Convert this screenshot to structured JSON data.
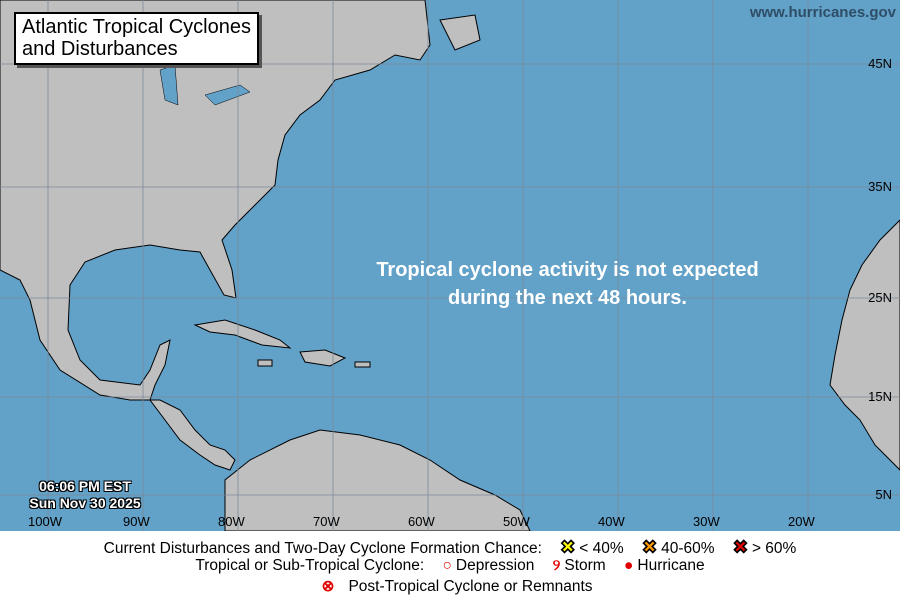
{
  "title_line1": "Atlantic Tropical Cyclones",
  "title_line2": "and Disturbances",
  "site": "www.hurricanes.gov",
  "message_line1": "Tropical cyclone activity is not expected",
  "message_line2": "during the next 48 hours.",
  "time": "06:06 PM EST",
  "date": "Sun Nov 30 2025",
  "longitudes": [
    "100W",
    "90W",
    "80W",
    "70W",
    "60W",
    "50W",
    "40W",
    "30W",
    "20W"
  ],
  "latitudes": [
    "45N",
    "35N",
    "25N",
    "15N",
    "5N"
  ],
  "colors": {
    "ocean": "#62a1c8",
    "land": "#bfbfbf",
    "low": "#ffff00",
    "medium": "#ff9900",
    "high": "#e00000",
    "cyclone": "#e00000"
  },
  "legend": {
    "disturbance_label": "Current Disturbances and Two-Day Cyclone Formation Chance:",
    "low": "< 40%",
    "medium": "40-60%",
    "high": "> 60%",
    "cyclone_label": "Tropical or Sub-Tropical Cyclone:",
    "depression": "Depression",
    "storm": "Storm",
    "hurricane": "Hurricane",
    "post_tropical": "Post-Tropical Cyclone or Remnants"
  }
}
